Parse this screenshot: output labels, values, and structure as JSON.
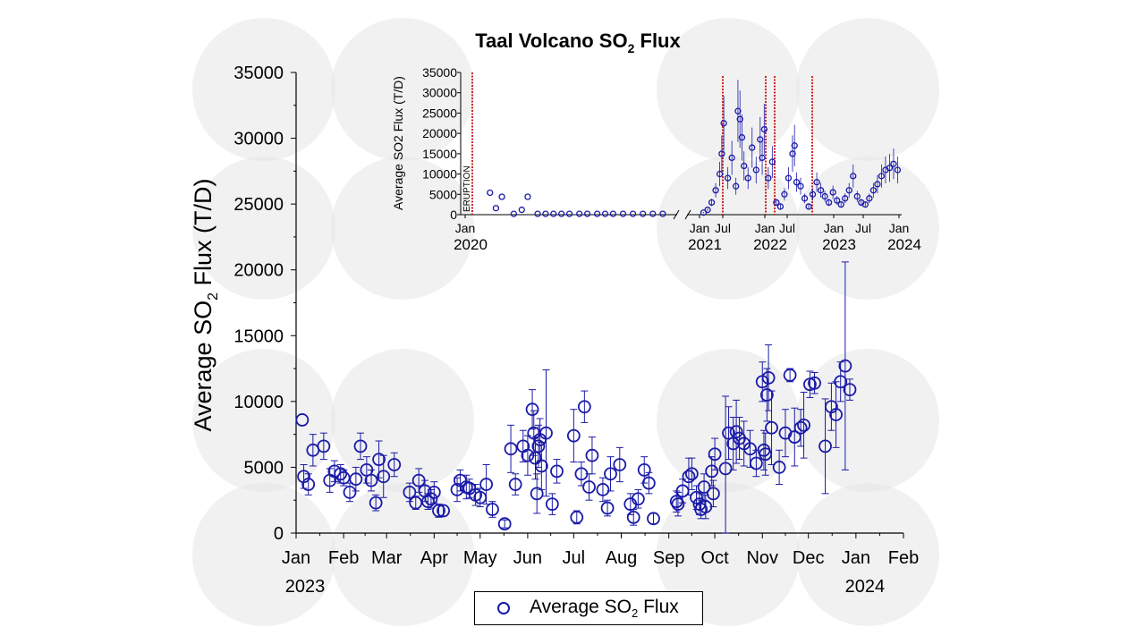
{
  "colors": {
    "marker": "#1a1aa8",
    "eruption": "#cc2222",
    "watermark": "#e6e6e6"
  },
  "chart_data": [
    {
      "type": "scatter",
      "title_main": "Taal Volcano SO",
      "title_sub": "2",
      "title_tail": " Flux",
      "ylabel_main": "Average SO",
      "ylabel_sub": "2",
      "ylabel_tail": " Flux (T/D)",
      "ylim": [
        0,
        35000
      ],
      "yticks": [
        0,
        5000,
        10000,
        15000,
        20000,
        25000,
        30000,
        35000
      ],
      "xlim": [
        0,
        396
      ],
      "xticks": [
        {
          "day": 0,
          "label": "Jan"
        },
        {
          "day": 31,
          "label": "Feb"
        },
        {
          "day": 59,
          "label": "Mar"
        },
        {
          "day": 90,
          "label": "Apr"
        },
        {
          "day": 120,
          "label": "May"
        },
        {
          "day": 151,
          "label": "Jun"
        },
        {
          "day": 181,
          "label": "Jul"
        },
        {
          "day": 212,
          "label": "Aug"
        },
        {
          "day": 243,
          "label": "Sep"
        },
        {
          "day": 273,
          "label": "Oct"
        },
        {
          "day": 304,
          "label": "Nov"
        },
        {
          "day": 334,
          "label": "Dec"
        },
        {
          "day": 365,
          "label": "Jan"
        },
        {
          "day": 396,
          "label": "Feb"
        }
      ],
      "year_labels": [
        {
          "day": 0,
          "label": "2023"
        },
        {
          "day": 365,
          "label": "2024"
        }
      ],
      "legend": {
        "label_main": "Average SO",
        "label_sub": "2",
        "label_tail": " Flux"
      },
      "x_unit": "day of 2023",
      "points": [
        [
          4,
          8600,
          null
        ],
        [
          5,
          4300,
          900
        ],
        [
          8,
          3700,
          800
        ],
        [
          11,
          6300,
          1200
        ],
        [
          18,
          6600,
          1000
        ],
        [
          22,
          4000,
          900
        ],
        [
          25,
          4700,
          800
        ],
        [
          29,
          4500,
          700
        ],
        [
          31,
          4200,
          600
        ],
        [
          35,
          3100,
          700
        ],
        [
          39,
          4100,
          900
        ],
        [
          42,
          6600,
          1000
        ],
        [
          46,
          4800,
          1000
        ],
        [
          49,
          4000,
          800
        ],
        [
          52,
          2300,
          600
        ],
        [
          54,
          5600,
          1400
        ],
        [
          57,
          4300,
          1600
        ],
        [
          64,
          5200,
          900
        ],
        [
          74,
          3100,
          700
        ],
        [
          78,
          2300,
          500
        ],
        [
          80,
          4000,
          900
        ],
        [
          84,
          3200,
          800
        ],
        [
          86,
          2400,
          600
        ],
        [
          88,
          2600,
          700
        ],
        [
          90,
          3100,
          800
        ],
        [
          93,
          1700,
          500
        ],
        [
          96,
          1700,
          400
        ],
        [
          105,
          3300,
          900
        ],
        [
          107,
          4000,
          800
        ],
        [
          111,
          3500,
          900
        ],
        [
          113,
          3400,
          700
        ],
        [
          117,
          2900,
          800
        ],
        [
          120,
          2700,
          700
        ],
        [
          124,
          3700,
          1500
        ],
        [
          128,
          1800,
          600
        ],
        [
          136,
          700,
          300
        ],
        [
          140,
          6400,
          1800
        ],
        [
          143,
          3700,
          800
        ],
        [
          148,
          6600,
          1200
        ],
        [
          151,
          5900,
          1500
        ],
        [
          154,
          9400,
          1500
        ],
        [
          155,
          7600,
          1700
        ],
        [
          156,
          5700,
          1600
        ],
        [
          157,
          3000,
          1500
        ],
        [
          158,
          6600,
          1600
        ],
        [
          159,
          7100,
          1600
        ],
        [
          160,
          5100,
          1800
        ],
        [
          163,
          7600,
          4800
        ],
        [
          167,
          2200,
          800
        ],
        [
          170,
          4700,
          900
        ],
        [
          181,
          7400,
          2000
        ],
        [
          183,
          1200,
          500
        ],
        [
          186,
          4500,
          900
        ],
        [
          188,
          9600,
          1200
        ],
        [
          191,
          3500,
          1000
        ],
        [
          193,
          5900,
          1400
        ],
        [
          200,
          3300,
          900
        ],
        [
          203,
          1900,
          600
        ],
        [
          205,
          4500,
          1300
        ],
        [
          211,
          5200,
          1300
        ],
        [
          218,
          2200,
          800
        ],
        [
          220,
          1200,
          600
        ],
        [
          223,
          2600,
          700
        ],
        [
          227,
          4800,
          1000
        ],
        [
          230,
          3800,
          800
        ],
        [
          233,
          1100,
          400
        ],
        [
          248,
          2400,
          800
        ],
        [
          249,
          2200,
          900
        ],
        [
          252,
          3200,
          900
        ],
        [
          256,
          4300,
          1400
        ],
        [
          258,
          4500,
          1200
        ],
        [
          261,
          2700,
          900
        ],
        [
          263,
          2200,
          800
        ],
        [
          264,
          1800,
          700
        ],
        [
          266,
          3500,
          1000
        ],
        [
          267,
          2000,
          900
        ],
        [
          271,
          4700,
          1100
        ],
        [
          272,
          3000,
          1000
        ],
        [
          273,
          6000,
          1200
        ],
        [
          280,
          4900,
          5500
        ],
        [
          282,
          7600,
          2000
        ],
        [
          285,
          6800,
          2000
        ],
        [
          287,
          7700,
          2400
        ],
        [
          289,
          7200,
          1600
        ],
        [
          292,
          6800,
          1700
        ],
        [
          296,
          6400,
          1400
        ],
        [
          300,
          5300,
          1000
        ],
        [
          304,
          11500,
          1500
        ],
        [
          305,
          6300,
          1500
        ],
        [
          306,
          6000,
          1600
        ],
        [
          307,
          10500,
          2000
        ],
        [
          308,
          11800,
          2500
        ],
        [
          310,
          8000,
          2800
        ],
        [
          315,
          5000,
          1300
        ],
        [
          319,
          7600,
          1800
        ],
        [
          322,
          12000,
          500
        ],
        [
          325,
          7300,
          2200
        ],
        [
          329,
          8000,
          1400
        ],
        [
          331,
          8200,
          2500
        ],
        [
          335,
          11300,
          1000
        ],
        [
          338,
          11400,
          800
        ],
        [
          345,
          6600,
          3600
        ],
        [
          349,
          9600,
          1800
        ],
        [
          352,
          9000,
          2500
        ],
        [
          355,
          11500,
          1500
        ],
        [
          358,
          12700,
          7900
        ],
        [
          361,
          10900,
          800
        ]
      ]
    },
    {
      "type": "scatter",
      "inset": true,
      "ylabel": "Average SO2 Flux (T/D)",
      "ylim": [
        0,
        35000
      ],
      "yticks": [
        0,
        5000,
        10000,
        15000,
        20000,
        25000,
        30000,
        35000
      ],
      "xticks": [
        {
          "label": "Jan",
          "year": "2020"
        },
        {
          "label": "Jan",
          "year": "2021"
        },
        {
          "label": "Jul",
          "year": ""
        },
        {
          "label": "Jan",
          "year": "2022"
        },
        {
          "label": "Jul",
          "year": ""
        },
        {
          "label": "Jan",
          "year": "2023"
        },
        {
          "label": "Jul",
          "year": ""
        },
        {
          "label": "Jan",
          "year": "2024"
        }
      ],
      "eruption_label": "ERUPTION",
      "broken_axis": true,
      "segment1_points": [
        [
          0.08,
          5400
        ],
        [
          0.11,
          1600
        ],
        [
          0.14,
          4400
        ],
        [
          0.2,
          200
        ],
        [
          0.24,
          1200
        ],
        [
          0.27,
          4400
        ],
        [
          0.32,
          200
        ],
        [
          0.36,
          200
        ],
        [
          0.4,
          200
        ],
        [
          0.44,
          200
        ],
        [
          0.48,
          200
        ],
        [
          0.53,
          200
        ],
        [
          0.57,
          200
        ],
        [
          0.62,
          200
        ],
        [
          0.66,
          200
        ],
        [
          0.7,
          200
        ],
        [
          0.75,
          200
        ],
        [
          0.8,
          200
        ],
        [
          0.85,
          200
        ],
        [
          0.9,
          200
        ],
        [
          0.95,
          200
        ]
      ],
      "segment2_points": [
        [
          0.02,
          500
        ],
        [
          0.04,
          1200
        ],
        [
          0.06,
          3000
        ],
        [
          0.08,
          6000
        ],
        [
          0.1,
          10000
        ],
        [
          0.11,
          15000
        ],
        [
          0.12,
          22500
        ],
        [
          0.14,
          9000
        ],
        [
          0.16,
          14000
        ],
        [
          0.18,
          7000
        ],
        [
          0.19,
          25500
        ],
        [
          0.2,
          23500
        ],
        [
          0.21,
          19000
        ],
        [
          0.22,
          12000
        ],
        [
          0.24,
          9000
        ],
        [
          0.26,
          16500
        ],
        [
          0.28,
          11000
        ],
        [
          0.3,
          18500
        ],
        [
          0.31,
          14000
        ],
        [
          0.32,
          21000
        ],
        [
          0.34,
          9000
        ],
        [
          0.36,
          13000
        ],
        [
          0.38,
          3000
        ],
        [
          0.4,
          2000
        ],
        [
          0.42,
          5000
        ],
        [
          0.44,
          9000
        ],
        [
          0.46,
          15000
        ],
        [
          0.47,
          17000
        ],
        [
          0.48,
          8000
        ],
        [
          0.5,
          7000
        ],
        [
          0.52,
          4000
        ],
        [
          0.54,
          2000
        ],
        [
          0.56,
          5000
        ],
        [
          0.58,
          8000
        ],
        [
          0.6,
          6000
        ],
        [
          0.62,
          4500
        ],
        [
          0.64,
          3000
        ],
        [
          0.66,
          5500
        ],
        [
          0.68,
          3500
        ],
        [
          0.7,
          2500
        ],
        [
          0.72,
          4000
        ],
        [
          0.74,
          6000
        ],
        [
          0.76,
          9500
        ],
        [
          0.78,
          4500
        ],
        [
          0.8,
          3000
        ],
        [
          0.82,
          2500
        ],
        [
          0.84,
          4000
        ],
        [
          0.86,
          6000
        ],
        [
          0.88,
          7500
        ],
        [
          0.9,
          9500
        ],
        [
          0.92,
          11000
        ],
        [
          0.94,
          11500
        ],
        [
          0.96,
          12500
        ],
        [
          0.98,
          11000
        ]
      ]
    }
  ]
}
